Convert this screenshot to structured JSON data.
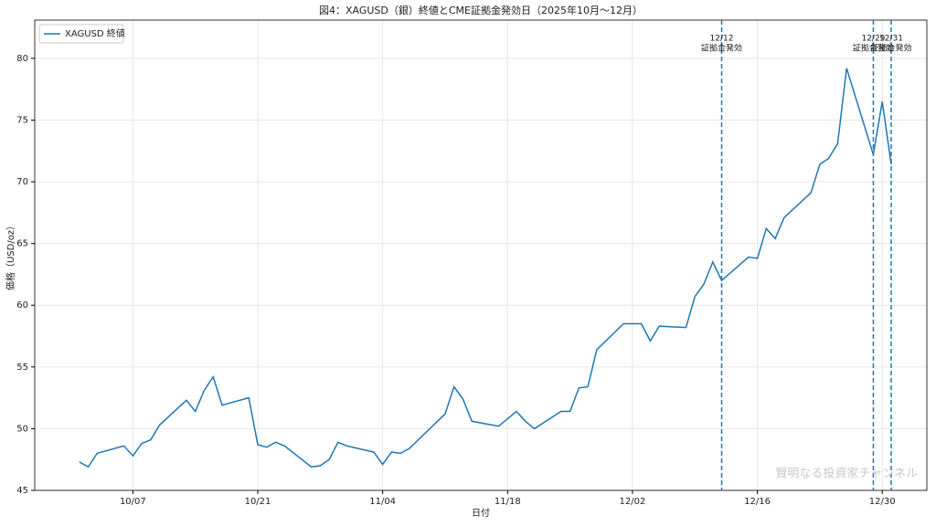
{
  "chart_data": {
    "type": "line",
    "title": "図4：XAGUSD（銀）終値とCME証拠金発効日（2025年10月〜12月）",
    "x_label": "日付",
    "y_label": "価格（USD/oz）",
    "x": [
      "10/01",
      "10/02",
      "10/03",
      "10/06",
      "10/07",
      "10/08",
      "10/09",
      "10/10",
      "10/13",
      "10/14",
      "10/15",
      "10/16",
      "10/17",
      "10/20",
      "10/21",
      "10/22",
      "10/23",
      "10/24",
      "10/27",
      "10/28",
      "10/29",
      "10/30",
      "10/31",
      "11/03",
      "11/04",
      "11/05",
      "11/06",
      "11/07",
      "11/11",
      "11/12",
      "11/13",
      "11/14",
      "11/17",
      "11/18",
      "11/19",
      "11/20",
      "11/21",
      "11/24",
      "11/25",
      "11/26",
      "11/27",
      "11/28",
      "12/01",
      "12/02",
      "12/03",
      "12/04",
      "12/05",
      "12/08",
      "12/09",
      "12/10",
      "12/11",
      "12/12",
      "12/15",
      "12/16",
      "12/17",
      "12/18",
      "12/19",
      "12/22",
      "12/23",
      "12/24",
      "12/25",
      "12/26",
      "12/29",
      "12/30",
      "12/31"
    ],
    "series": [
      {
        "name": "XAGUSD 終値",
        "color": "#1f77b4",
        "values": [
          47.3,
          46.9,
          48.0,
          48.6,
          47.8,
          48.8,
          49.1,
          50.3,
          52.3,
          51.4,
          53.1,
          54.2,
          51.9,
          52.5,
          48.7,
          48.5,
          48.9,
          48.6,
          46.9,
          47.0,
          47.5,
          48.9,
          48.6,
          48.1,
          47.1,
          48.1,
          48.0,
          48.4,
          51.2,
          53.4,
          52.4,
          50.6,
          50.2,
          50.8,
          51.4,
          50.6,
          50.0,
          51.4,
          51.4,
          53.3,
          53.4,
          56.4,
          58.5,
          58.5,
          58.5,
          57.1,
          58.3,
          58.2,
          60.7,
          61.7,
          63.5,
          62.0,
          63.9,
          63.8,
          66.2,
          65.4,
          67.1,
          69.1,
          71.4,
          71.9,
          73.1,
          79.2,
          72.2,
          76.5,
          71.4
        ]
      }
    ],
    "annotations": [
      {
        "date": "12/12",
        "label": "証拠金発効"
      },
      {
        "date": "12/29",
        "label": "証拠金発効"
      },
      {
        "date": "12/31",
        "label": "証拠金発効"
      }
    ],
    "xlim": [
      "09/26",
      "01/04"
    ],
    "xticks": [
      "10/07",
      "10/21",
      "11/04",
      "11/18",
      "12/02",
      "12/16",
      "12/30"
    ],
    "ylim": [
      45,
      83.1
    ],
    "yticks": [
      45,
      50,
      55,
      60,
      65,
      70,
      75,
      80
    ],
    "grid": true,
    "legend": "upper left",
    "watermark": "賢明なる投資家チャンネル"
  }
}
